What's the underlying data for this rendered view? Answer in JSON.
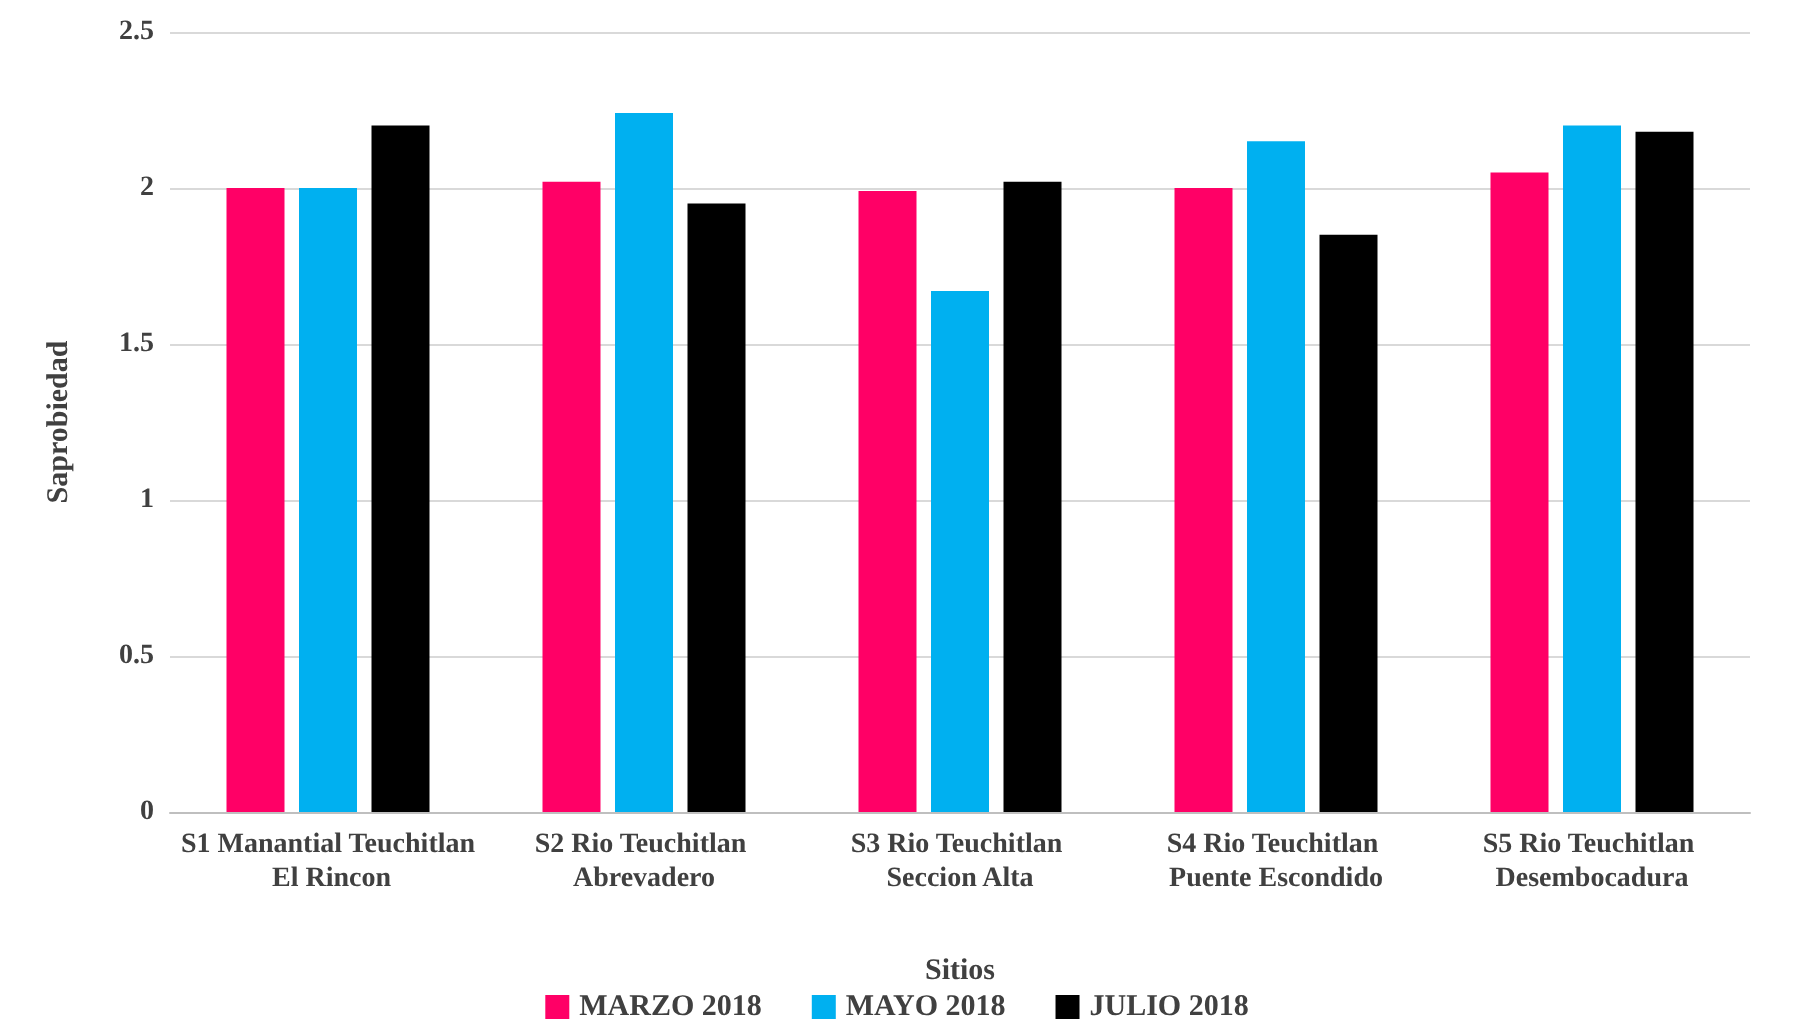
{
  "chart_data": {
    "type": "bar",
    "xlabel": "Sitios",
    "ylabel": "Saprobiedad",
    "categories": [
      "S1 Manantial Teuchitlan El Rincon",
      "S2 Rio Teuchitlan Abrevadero",
      "S3 Rio Teuchitlan Seccion Alta",
      "S4 Rio Teuchitlan Puente Escondido",
      "S5 Rio Teuchitlan Desembocadura"
    ],
    "series": [
      {
        "name": "MARZO 2018",
        "color": "#ff0066",
        "values": [
          2.0,
          2.02,
          1.99,
          2.0,
          2.05
        ]
      },
      {
        "name": "MAYO 2018",
        "color": "#00b0f0",
        "values": [
          2.0,
          2.24,
          1.67,
          2.15,
          2.2
        ]
      },
      {
        "name": "JULIO 2018",
        "color": "#000000",
        "values": [
          2.2,
          1.95,
          2.02,
          1.85,
          2.18
        ]
      }
    ],
    "ylim": [
      0,
      2.5
    ],
    "yticks": [
      0,
      0.5,
      1,
      1.5,
      2,
      2.5
    ],
    "grid": "y",
    "legend": "bottom"
  }
}
